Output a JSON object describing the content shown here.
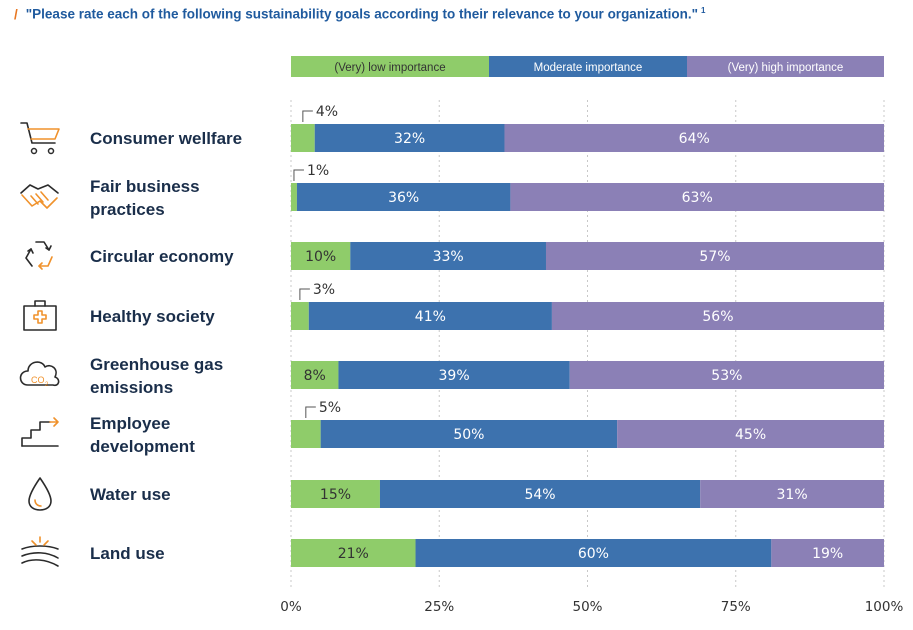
{
  "title": {
    "marker": "/",
    "text": "\"Please rate each of the following sustainability goals according to their relevance to your organization.\"",
    "footnote": "1"
  },
  "colors": {
    "low": "#8fcc6a",
    "moderate": "#3d72ae",
    "high": "#8b80b6",
    "title": "#1f5a9e",
    "accent": "#e87722",
    "icon_dark": "#2b2b2b",
    "icon_accent": "#f0922c"
  },
  "chart_data": {
    "type": "bar",
    "orientation": "horizontal",
    "stacked": true,
    "categories": [
      "Consumer wellfare",
      "Fair business practices",
      "Circular economy",
      "Healthy society",
      "Greenhouse gas emissions",
      "Employee development",
      "Water use",
      "Land use"
    ],
    "category_lines": [
      [
        "Consumer wellfare"
      ],
      [
        "Fair business",
        "practices"
      ],
      [
        "Circular economy"
      ],
      [
        "Healthy society"
      ],
      [
        "Greenhouse gas",
        "emissions"
      ],
      [
        "Employee",
        "development"
      ],
      [
        "Water use"
      ],
      [
        "Land use"
      ]
    ],
    "icons": [
      "cart-icon",
      "handshake-icon",
      "recycle-icon",
      "first-aid-kit-icon",
      "co2-cloud-icon",
      "stairs-icon",
      "water-drop-icon",
      "land-field-icon"
    ],
    "series": [
      {
        "name": "(Very) low importance",
        "values": [
          4,
          1,
          10,
          3,
          8,
          5,
          15,
          21
        ]
      },
      {
        "name": "Moderate importance",
        "values": [
          32,
          36,
          33,
          41,
          39,
          50,
          54,
          60
        ]
      },
      {
        "name": "(Very) high importance",
        "values": [
          64,
          63,
          57,
          56,
          53,
          45,
          31,
          19
        ]
      }
    ],
    "xlim": [
      0,
      100
    ],
    "xticks": [
      0,
      25,
      50,
      75,
      100
    ],
    "xtick_labels": [
      "0%",
      "25%",
      "50%",
      "75%",
      "100%"
    ],
    "grid": "vertical dotted",
    "legend_position": "top"
  }
}
